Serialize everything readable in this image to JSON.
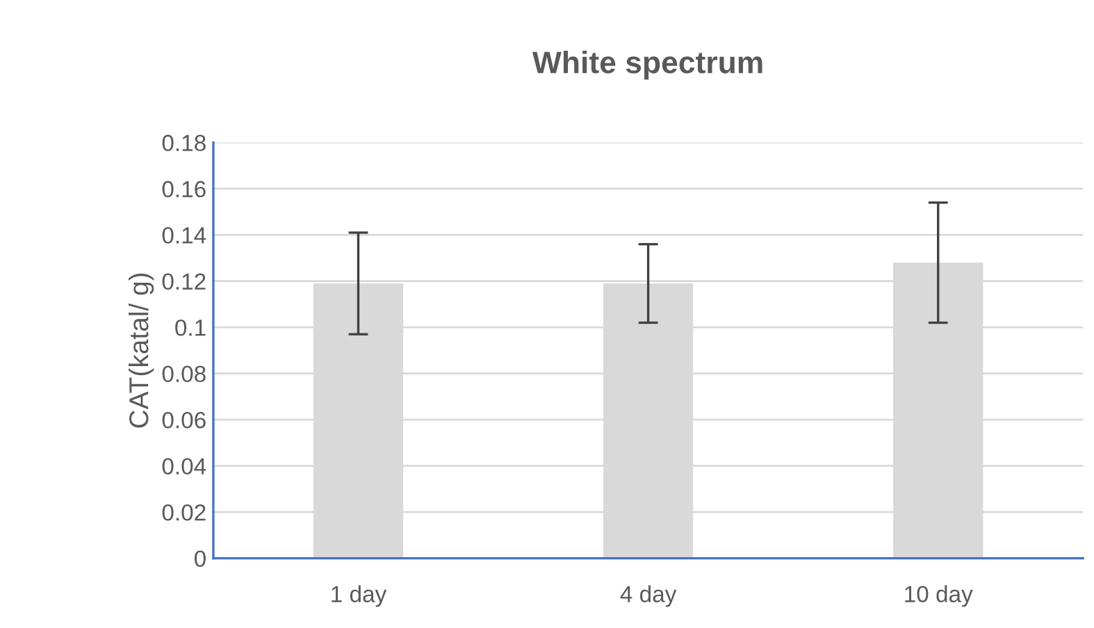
{
  "chart_data": {
    "type": "bar",
    "title": "White spectrum",
    "ylabel": "CAT(katal/ g)",
    "categories": [
      "1 day",
      "4 day",
      "10 day"
    ],
    "values": [
      0.119,
      0.119,
      0.128
    ],
    "errors": [
      [
        0.097,
        0.141
      ],
      [
        0.102,
        0.136
      ],
      [
        0.102,
        0.154
      ]
    ],
    "color": "#d9d9d9",
    "ylim": [
      0,
      0.18
    ],
    "yticks": [
      0,
      0.02,
      0.04,
      0.06,
      0.08,
      {
        "value": 0.1,
        "label": "0.1"
      },
      0.12,
      0.14,
      0.16,
      0.18
    ],
    "grid": "y",
    "legend": false
  }
}
